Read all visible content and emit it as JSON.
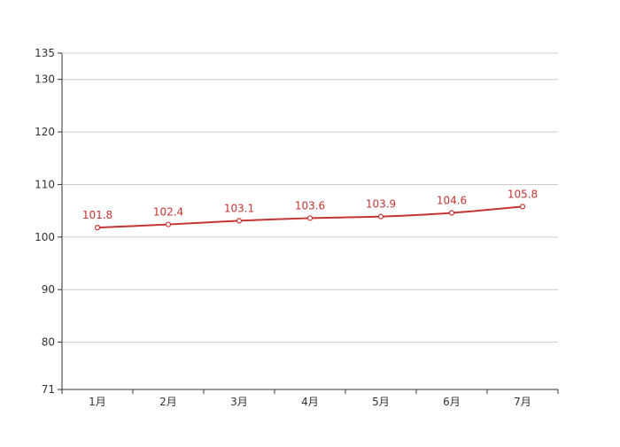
{
  "chart_data": {
    "type": "line",
    "title": "",
    "xlabel": "",
    "ylabel": "",
    "categories": [
      "1月",
      "2月",
      "3月",
      "4月",
      "5月",
      "6月",
      "7月"
    ],
    "series": [
      {
        "values": [
          101.8,
          102.4,
          103.1,
          103.6,
          103.9,
          104.6,
          105.8
        ],
        "color": "#c23531"
      }
    ],
    "ylim": [
      71,
      135
    ],
    "yticks": [
      71,
      80,
      90,
      100,
      110,
      120,
      130,
      135
    ],
    "grid": true,
    "legend": "none",
    "point_marker": "hollow-circle",
    "smooth": true
  }
}
